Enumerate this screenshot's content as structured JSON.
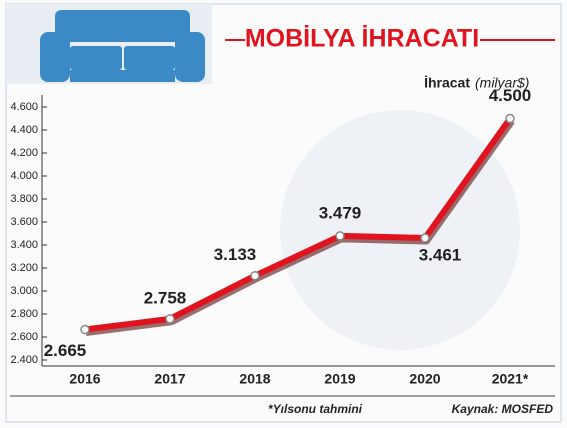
{
  "chart_data": {
    "type": "line",
    "title": "MOBİLYA İHRACATI",
    "y_label": "İhracat",
    "y_unit": "(milyar$)",
    "categories": [
      "2016",
      "2017",
      "2018",
      "2019",
      "2020",
      "2021*"
    ],
    "values": [
      2665,
      2758,
      3133,
      3479,
      3461,
      4500
    ],
    "value_labels": [
      "2.665",
      "2.758",
      "3.133",
      "3.479",
      "3.461",
      "4.500"
    ],
    "color": "#e0141e",
    "ylim": [
      2400,
      4600
    ],
    "yticks": [
      {
        "value": 2400,
        "label": "2.400"
      },
      {
        "value": 2600,
        "label": "2.600"
      },
      {
        "value": 2800,
        "label": "2.800"
      },
      {
        "value": 3000,
        "label": "3.000"
      },
      {
        "value": 3200,
        "label": "3.200"
      },
      {
        "value": 3400,
        "label": "3.400"
      },
      {
        "value": 3600,
        "label": "3.600"
      },
      {
        "value": 3800,
        "label": "3.800"
      },
      {
        "value": 4000,
        "label": "4.000"
      },
      {
        "value": 4200,
        "label": "4.200"
      },
      {
        "value": 4400,
        "label": "4.400"
      },
      {
        "value": 4600,
        "label": "4.600"
      }
    ],
    "footnote": "*Yılsonu tahmini",
    "source": "Kaynak: MOSFED"
  }
}
